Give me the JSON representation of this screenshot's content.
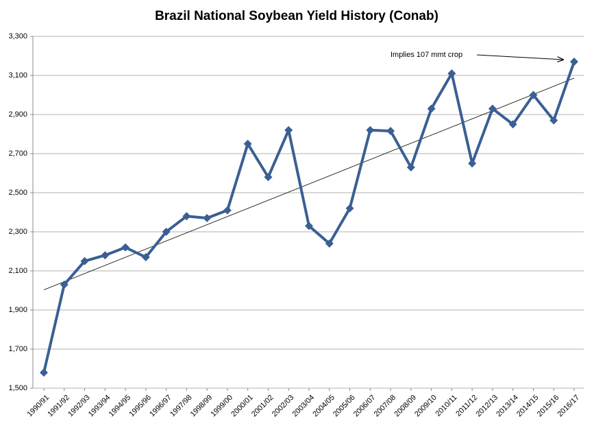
{
  "chart_data": {
    "type": "line",
    "title": "Brazil National Soybean Yield History (Conab)",
    "annotation": "Implies 107 mmt crop",
    "categories": [
      "1990/91",
      "1991/92",
      "1992/93",
      "1993/94",
      "1994/95",
      "1995/96",
      "1996/97",
      "1997/98",
      "1998/99",
      "1999/00",
      "2000/01",
      "2001/02",
      "2002/03",
      "2003/04",
      "2004/05",
      "2005/06",
      "2006/07",
      "2007/08",
      "2008/09",
      "2009/10",
      "2010/11",
      "2011/12",
      "2012/13",
      "2013/14",
      "2014/15",
      "2015/16",
      "2016/17"
    ],
    "series": [
      {
        "color": "#3a5f94",
        "values": [
          1580,
          2030,
          2150,
          2180,
          2220,
          2170,
          2300,
          2380,
          2370,
          2410,
          2750,
          2580,
          2820,
          2330,
          2240,
          2420,
          2820,
          2816,
          2630,
          2930,
          3110,
          2650,
          2930,
          2850,
          3000,
          2870,
          3170
        ]
      }
    ],
    "trendline": true,
    "ylim": [
      1500,
      3300
    ],
    "yticks": [
      {
        "value": 1500,
        "label": "1,500"
      },
      {
        "value": 1700,
        "label": "1,700"
      },
      {
        "value": 1900,
        "label": "1,900"
      },
      {
        "value": 2100,
        "label": "2,100"
      },
      {
        "value": 2300,
        "label": "2,300"
      },
      {
        "value": 2500,
        "label": "2,500"
      },
      {
        "value": 2700,
        "label": "2,700"
      },
      {
        "value": 2900,
        "label": "2,900"
      },
      {
        "value": 3100,
        "label": "3,100"
      },
      {
        "value": 3300,
        "label": "3,300"
      }
    ],
    "grid": true
  }
}
